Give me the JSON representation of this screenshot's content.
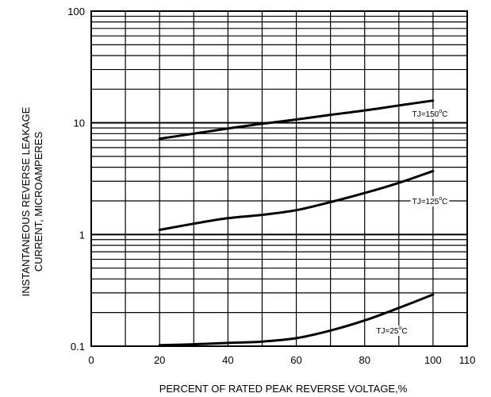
{
  "chart_data": {
    "type": "line",
    "title": "",
    "xlabel": "PERCENT OF RATED PEAK REVERSE VOLTAGE,%",
    "ylabel_lines": [
      "INSTANTANEOUS REVERSE LEAKAGE",
      "CURRENT, MICROAMPERES"
    ],
    "xlim": [
      0,
      110
    ],
    "ylim": [
      0.1,
      100
    ],
    "yscale": "log",
    "grid": true,
    "x_ticks": [
      0,
      20,
      40,
      60,
      80,
      100,
      110
    ],
    "x_tick_labels": [
      "0",
      "20",
      "40",
      "60",
      "80",
      "100",
      "110"
    ],
    "y_ticks": [
      0.1,
      1,
      10,
      100
    ],
    "y_tick_labels": [
      "0.1",
      "1",
      "10",
      "100"
    ],
    "series": [
      {
        "name": "TJ=150°C",
        "label_parts": {
          "prefix": "TJ=150",
          "degree": "o",
          "suffix": "C"
        },
        "x": [
          20,
          30,
          40,
          50,
          60,
          70,
          80,
          90,
          100
        ],
        "values": [
          7.2,
          8.0,
          8.9,
          9.8,
          10.7,
          11.8,
          12.9,
          14.3,
          15.8
        ]
      },
      {
        "name": "TJ=125°C",
        "label_parts": {
          "prefix": "TJ=125",
          "degree": "o",
          "suffix": "C"
        },
        "x": [
          20,
          30,
          40,
          50,
          60,
          70,
          80,
          90,
          100
        ],
        "values": [
          1.1,
          1.25,
          1.4,
          1.5,
          1.65,
          1.95,
          2.35,
          2.9,
          3.7
        ]
      },
      {
        "name": "TJ=25°C",
        "label_parts": {
          "prefix": "TJ=25",
          "degree": "o",
          "suffix": "C"
        },
        "x": [
          20,
          30,
          40,
          50,
          60,
          70,
          80,
          90,
          100
        ],
        "values": [
          0.102,
          0.104,
          0.107,
          0.11,
          0.118,
          0.138,
          0.17,
          0.22,
          0.29
        ]
      }
    ]
  }
}
